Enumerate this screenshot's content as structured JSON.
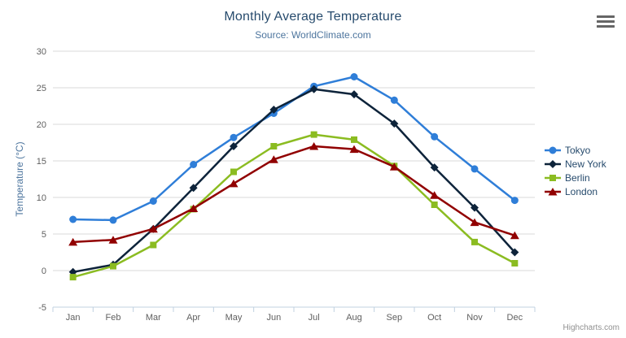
{
  "header": {
    "title": "Monthly Average Temperature",
    "subtitle": "Source: WorldClimate.com"
  },
  "credits": {
    "label": "Highcharts.com"
  },
  "export_menu": {
    "icon": "hamburger-icon"
  },
  "theme": {
    "title_color": "#274b6d",
    "subtitle_color": "#4d759e",
    "axis_label_color": "#606060",
    "axis_title_color": "#4d759e",
    "grid_color": "#d8d8d8",
    "axis_line_color": "#c0d0e0",
    "legend_text_color": "#274b6d",
    "credits_color": "#909090"
  },
  "chart_data": {
    "type": "line",
    "title": "Monthly Average Temperature",
    "subtitle": "Source: WorldClimate.com",
    "xlabel": "",
    "ylabel": "Temperature (°C)",
    "ylim": [
      -5,
      30
    ],
    "ytick_step": 5,
    "yticks": [
      -5,
      0,
      5,
      10,
      15,
      20,
      25,
      30
    ],
    "grid": true,
    "legend_position": "right",
    "categories": [
      "Jan",
      "Feb",
      "Mar",
      "Apr",
      "May",
      "Jun",
      "Jul",
      "Aug",
      "Sep",
      "Oct",
      "Nov",
      "Dec"
    ],
    "series": [
      {
        "name": "Tokyo",
        "color": "#2f7ed8",
        "marker": "circle",
        "values": [
          7.0,
          6.9,
          9.5,
          14.5,
          18.2,
          21.5,
          25.2,
          26.5,
          23.3,
          18.3,
          13.9,
          9.6
        ]
      },
      {
        "name": "New York",
        "color": "#0d233a",
        "marker": "diamond",
        "values": [
          -0.2,
          0.8,
          5.7,
          11.3,
          17.0,
          22.0,
          24.8,
          24.1,
          20.1,
          14.1,
          8.6,
          2.5
        ]
      },
      {
        "name": "Berlin",
        "color": "#8bbc21",
        "marker": "square",
        "values": [
          -0.9,
          0.6,
          3.5,
          8.4,
          13.5,
          17.0,
          18.6,
          17.9,
          14.3,
          9.0,
          3.9,
          1.0
        ]
      },
      {
        "name": "London",
        "color": "#910000",
        "marker": "triangle",
        "values": [
          3.9,
          4.2,
          5.7,
          8.5,
          11.9,
          15.2,
          17.0,
          16.6,
          14.2,
          10.3,
          6.6,
          4.8
        ]
      }
    ]
  }
}
